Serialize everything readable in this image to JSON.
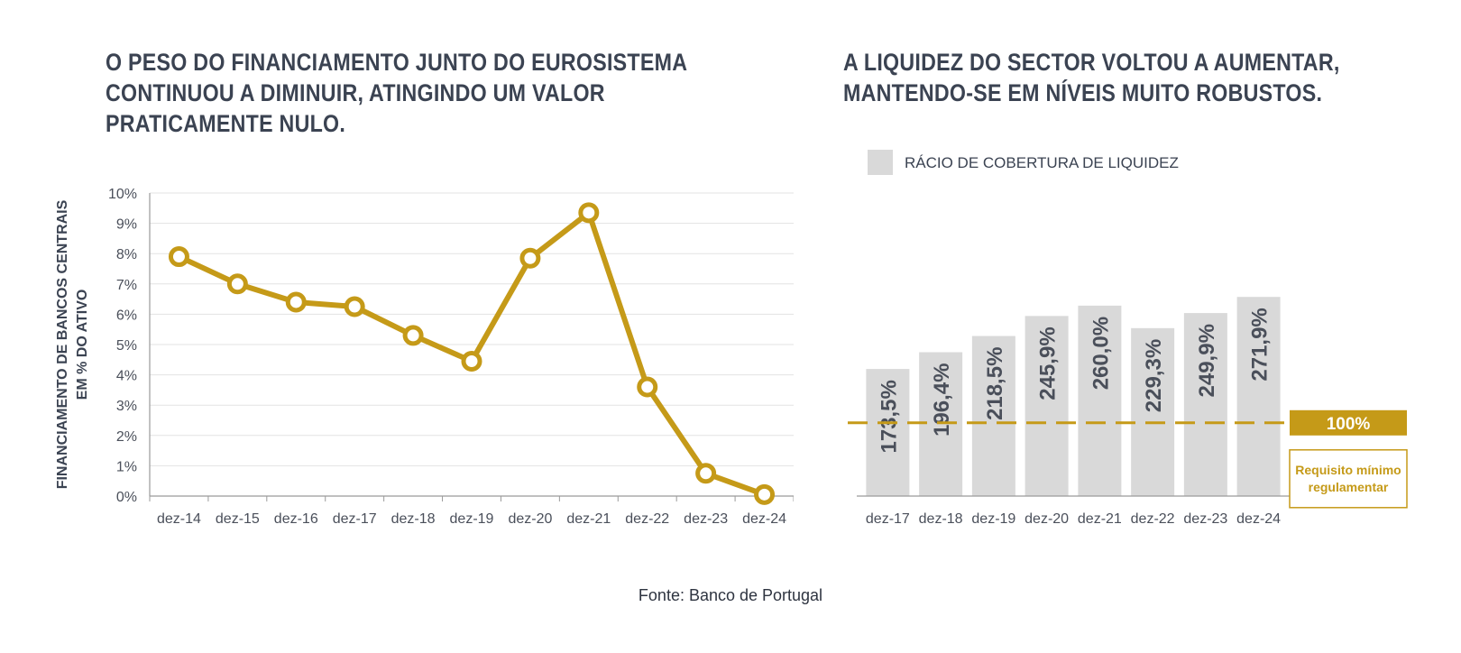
{
  "titles": {
    "left": "O PESO DO FINANCIAMENTO JUNTO DO EUROSISTEMA\nCONTINUOU A DIMINUIR, ATINGINDO UM VALOR\nPRATICAMENTE NULO.",
    "right": "A LIQUIDEZ DO SECTOR VOLTOU A AUMENTAR,\nMANTENDO-SE EM NÍVEIS MUITO ROBUSTOS."
  },
  "source": "Fonte: Banco de Portugal",
  "colors": {
    "gold": "#c59a18",
    "bar": "#d9d9d9",
    "grid": "#e3e3e3",
    "axis": "#9a9a9a"
  },
  "chart_data": [
    {
      "type": "line",
      "ylabel_lines": [
        "FINANCIAMENTO DE BANCOS CENTRAIS",
        "EM % DO ATIVO"
      ],
      "categories": [
        "dez-14",
        "dez-15",
        "dez-16",
        "dez-17",
        "dez-18",
        "dez-19",
        "dez-20",
        "dez-21",
        "dez-22",
        "dez-23",
        "dez-24"
      ],
      "values": [
        7.9,
        7.0,
        6.4,
        6.25,
        5.3,
        4.45,
        7.85,
        9.35,
        3.6,
        0.75,
        0.05
      ],
      "ylim": [
        0,
        10
      ],
      "yticks": [
        "0%",
        "1%",
        "2%",
        "3%",
        "4%",
        "5%",
        "6%",
        "7%",
        "8%",
        "9%",
        "10%"
      ],
      "grid": true
    },
    {
      "type": "bar",
      "legend": "RÁCIO DE COBERTURA DE LIQUIDEZ",
      "categories": [
        "dez-17",
        "dez-18",
        "dez-19",
        "dez-20",
        "dez-21",
        "dez-22",
        "dez-23",
        "dez-24"
      ],
      "values": [
        173.5,
        196.4,
        218.5,
        245.9,
        260.0,
        229.3,
        249.9,
        271.9
      ],
      "labels": [
        "173,5%",
        "196,4%",
        "218,5%",
        "245,9%",
        "260,0%",
        "229,3%",
        "249,9%",
        "271,9%"
      ],
      "reference": {
        "value": 100,
        "label": "100%",
        "note_lines": [
          "Requisito mínimo",
          "regulamentar"
        ]
      }
    }
  ]
}
